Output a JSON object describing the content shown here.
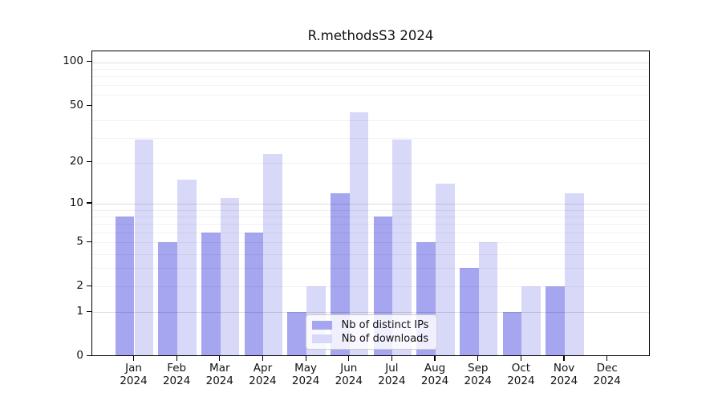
{
  "title": "R.methodsS3 2024",
  "chart_data": {
    "type": "bar",
    "title": "R.methodsS3 2024",
    "categories": [
      "Jan",
      "Feb",
      "Mar",
      "Apr",
      "May",
      "Jun",
      "Jul",
      "Aug",
      "Sep",
      "Oct",
      "Nov",
      "Dec"
    ],
    "year": "2024",
    "series": [
      {
        "name": "Nb of distinct IPs",
        "color": "#a5a5f0",
        "values": [
          8,
          5,
          6,
          6,
          1,
          12,
          8,
          5,
          3,
          1,
          2,
          0
        ]
      },
      {
        "name": "Nb of downloads",
        "color": "#d8d8f8",
        "values": [
          29,
          15,
          11,
          23,
          2,
          45,
          29,
          14,
          5,
          2,
          12,
          0
        ]
      }
    ],
    "xlabel": "",
    "ylabel": "",
    "y_axis": {
      "scale": "log1p",
      "tick_values": [
        0,
        1,
        2,
        5,
        10,
        20,
        50,
        100
      ],
      "major_gridlines": [
        1,
        10,
        100
      ],
      "minor_gridlines": [
        2,
        3,
        4,
        5,
        6,
        7,
        8,
        9,
        20,
        30,
        40,
        60,
        70,
        80,
        90
      ],
      "ylim": [
        0,
        124
      ]
    },
    "grid": true,
    "legend_position": "lower-center"
  }
}
